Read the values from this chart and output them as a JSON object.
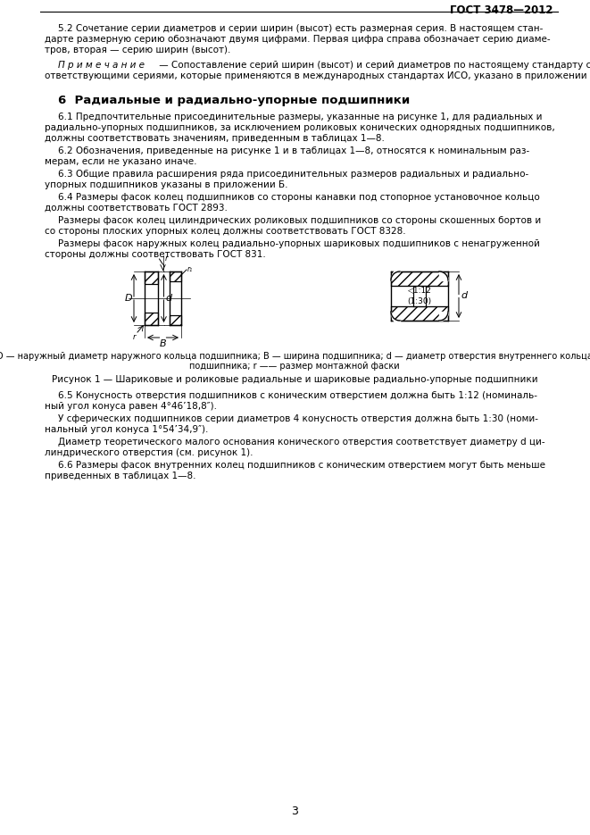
{
  "title_right": "ГОСТ 3478—2012",
  "page_number": "3",
  "bg_color": "#ffffff",
  "text_color": "#000000",
  "paragraph_5_2": "5.2 Сочетание серии диаметров и серии ширин (высот) есть размерная серия. В настоящем стан-\nдарте размерную серию обозначают двумя цифрами. Первая цифра справа обозначает серию диаме-\nтров, вторая — серию ширин (высот).",
  "note_label": "П р и м е ч а н и е",
  "note_text1": " — Сопоставление серий ширин (высот) и серий диаметров по настоящему стандарту с со-",
  "note_text2": "ответствующими сериями, которые применяются в международных стандартах ИСО, указано в приложении А.",
  "section_6_title": "6  Радиальные и радиально-упорные подшипники",
  "paragraph_6_1": "6.1 Предпочтительные присоединительные размеры, указанные на рисунке 1, для радиальных и\nрадиально-упорных подшипников, за исключением роликовых конических однорядных подшипников,\nдолжны соответствовать значениям, приведенным в таблицах 1—8.",
  "paragraph_6_2": "6.2 Обозначения, приведенные на рисунке 1 и в таблицах 1—8, относятся к номинальным раз-\nмерам, если не указано иначе.",
  "paragraph_6_3": "6.3 Общие правила расширения ряда присоединительных размеров радиальных и радиально-\nупорных подшипников указаны в приложении Б.",
  "paragraph_6_4a": "6.4 Размеры фасок колец подшипников со стороны канавки под стопорное установочное кольцо\nдолжны соответствовать ГОСТ 2893.",
  "paragraph_6_4b": "Размеры фасок колец цилиндрических роликовых подшипников со стороны скошенных бортов и\nсо стороны плоских упорных колец должны соответствовать ГОСТ 8328.",
  "paragraph_6_4c": "Размеры фасок наружных колец радиально-упорных шариковых подшипников с ненагруженной\nстороны должны соответствовать ГОСТ 831.",
  "figure_caption_desc1": "D — наружный диаметр наружного кольца подшипника; B — ширина подшипника; d — диаметр отверстия внутреннего кольца",
  "figure_caption_desc2": "подшипника; r —— размер монтажной фаски",
  "figure_caption": "Рисунок 1 — Шариковые и роликовые радиальные и шариковые радиально-упорные подшипники",
  "paragraph_6_5": "6.5 Конусность отверстия подшипников с коническим отверстием должна быть 1:12 (номиналь-\nный угол конуса равен 4°46’18,8″).",
  "paragraph_6_5b": "У сферических подшипников серии диаметров 4 конусность отверстия должна быть 1:30 (номи-\nнальный угол конуса 1°54’34,9″).",
  "paragraph_6_5c": "Диаметр теоретического малого основания конического отверстия соответствует диаметру d ци-\nлиндрического отверстия (см. рисунок 1).",
  "paragraph_6_6": "6.6 Размеры фасок внутренних колец подшипников с коническим отверстием могут быть меньше\nприведенных в таблицах 1—8."
}
